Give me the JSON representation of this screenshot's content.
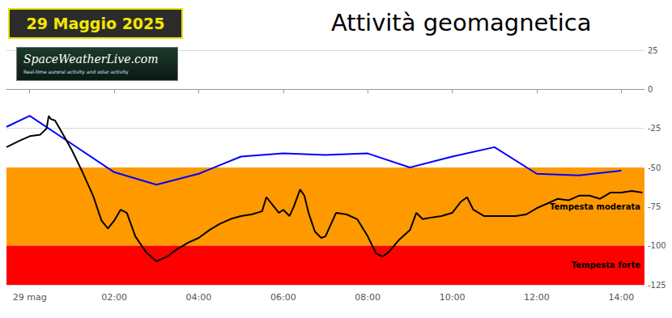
{
  "chart_data": {
    "type": "line",
    "title": "Attività geomagnetica",
    "badge": "29 Maggio 2025",
    "logo": {
      "text": "SpaceWeatherLive.com",
      "tagline": "Real-time auroral activity and solar activity"
    },
    "xlim": [
      -0.55,
      14.55
    ],
    "xticks": [
      {
        "value": 0,
        "label": "29 mag"
      },
      {
        "value": 2,
        "label": "02:00"
      },
      {
        "value": 4,
        "label": "04:00"
      },
      {
        "value": 6,
        "label": "06:00"
      },
      {
        "value": 8,
        "label": "08:00"
      },
      {
        "value": 10,
        "label": "10:00"
      },
      {
        "value": 12,
        "label": "12:00"
      },
      {
        "value": 14,
        "label": "14:00"
      }
    ],
    "ylim": [
      -125,
      25
    ],
    "yticks": [
      -125,
      -100,
      -75,
      -50,
      -25,
      0,
      25
    ],
    "grid": true,
    "bands": [
      {
        "from": -50,
        "to": -100,
        "label": "Tempesta moderata",
        "color": "#ff9900"
      },
      {
        "from": -100,
        "to": -125,
        "label": "Tempesta forte",
        "color": "#ff0000"
      }
    ],
    "series": [
      {
        "color": "#0000ff",
        "x": [
          -0.55,
          0,
          1,
          2,
          3,
          4,
          5,
          6,
          7,
          8,
          9,
          10,
          11,
          12,
          13,
          14
        ],
        "values": [
          -24,
          -17,
          -35,
          -53,
          -61,
          -54,
          -43,
          -41,
          -42,
          -41,
          -50,
          -43,
          -37,
          -54,
          -55,
          -52
        ]
      },
      {
        "color": "#000000",
        "x": [
          -0.55,
          -0.25,
          0,
          0.25,
          0.4,
          0.45,
          0.5,
          0.6,
          0.75,
          1.0,
          1.25,
          1.5,
          1.7,
          1.85,
          2.0,
          2.15,
          2.3,
          2.5,
          2.75,
          3.0,
          3.25,
          3.5,
          3.75,
          4.0,
          4.25,
          4.5,
          4.75,
          5.0,
          5.25,
          5.5,
          5.6,
          5.75,
          5.9,
          6.0,
          6.15,
          6.25,
          6.4,
          6.5,
          6.6,
          6.75,
          6.9,
          7.0,
          7.25,
          7.5,
          7.75,
          8.0,
          8.2,
          8.35,
          8.5,
          8.75,
          9.0,
          9.15,
          9.3,
          9.5,
          9.75,
          10.0,
          10.2,
          10.35,
          10.5,
          10.75,
          11.0,
          11.25,
          11.5,
          11.75,
          12.0,
          12.25,
          12.5,
          12.75,
          13.0,
          13.25,
          13.5,
          13.75,
          14.0,
          14.25,
          14.5
        ],
        "values": [
          -37,
          -33,
          -30,
          -29,
          -25,
          -17,
          -19,
          -20,
          -27,
          -39,
          -53,
          -68,
          -84,
          -89,
          -84,
          -77,
          -79,
          -94,
          -104,
          -110,
          -107,
          -102,
          -98,
          -95,
          -90,
          -86,
          -83,
          -81,
          -80,
          -78,
          -69,
          -74,
          -79,
          -77,
          -81,
          -75,
          -64,
          -68,
          -79,
          -91,
          -95,
          -94,
          -79,
          -80,
          -83,
          -94,
          -105,
          -107,
          -104,
          -96,
          -90,
          -79,
          -83,
          -82,
          -81,
          -79,
          -72,
          -69,
          -77,
          -81,
          -81,
          -81,
          -81,
          -80,
          -76,
          -73,
          -70,
          -71,
          -68,
          -68,
          -70,
          -66,
          -66,
          -65,
          -66
        ]
      }
    ]
  }
}
